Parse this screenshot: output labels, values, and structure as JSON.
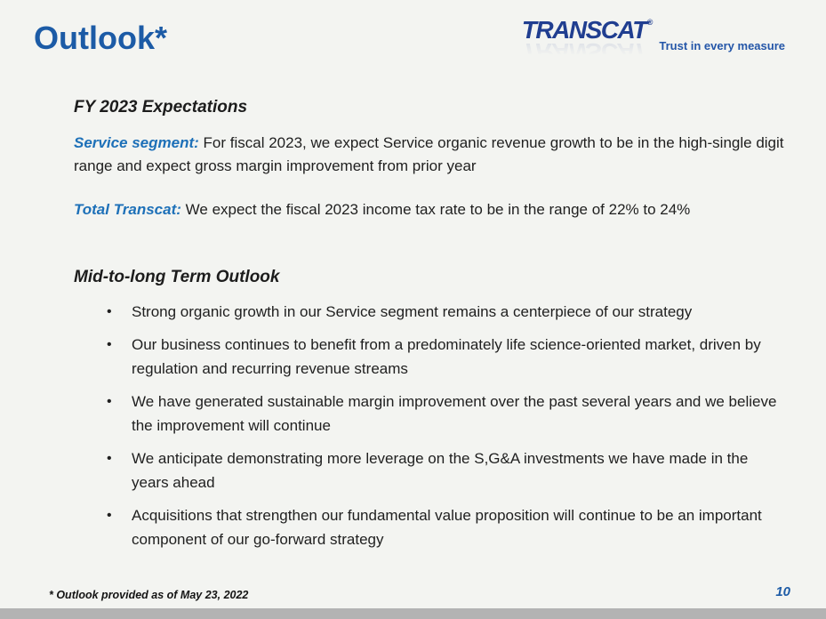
{
  "ui": {
    "bullet_char": "•"
  },
  "slide": {
    "title": "Outlook*",
    "page_number": "10",
    "footnote": "* Outlook provided as of May 23, 2022"
  },
  "logo": {
    "brand": "TRANSCAT",
    "registered_mark": "®",
    "tagline": "Trust in every measure"
  },
  "content": {
    "fy_heading": "FY 2023 Expectations",
    "service_label": "Service segment:",
    "service_text": "For fiscal 2023, we expect Service organic revenue growth to be in the high-single digit range and expect gross margin improvement from prior year",
    "total_label": "Total Transcat:",
    "total_text": "We expect the fiscal 2023 income tax rate to be in the range of 22% to 24%",
    "midterm_heading": "Mid-to-long Term Outlook",
    "bullets": [
      "Strong organic growth in our Service segment remains a centerpiece of our strategy",
      "Our business continues to benefit from a predominately life science-oriented market, driven by regulation and recurring revenue streams",
      "We have generated sustainable margin improvement over the past several years and we believe the improvement will continue",
      "We anticipate demonstrating more leverage on the S,G&A investments we have made in the years ahead",
      "Acquisitions that strengthen our fundamental value proposition will continue to be an important component of our go-forward strategy"
    ]
  },
  "colors": {
    "title_blue": "#1c5ba6",
    "label_blue": "#1d70b8",
    "logo_navy": "#203e90",
    "body_text": "#1f1f1f",
    "background": "#f3f4f1",
    "bottom_bar": "#b3b3b3"
  }
}
